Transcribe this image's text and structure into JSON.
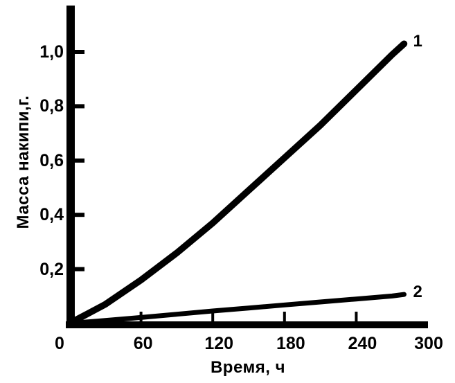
{
  "colors": {
    "ink": "#000000",
    "paper": "#ffffff"
  },
  "chart_data": {
    "type": "line",
    "title": "",
    "xlabel": "Время, ч",
    "ylabel": "Масса накипи,г.",
    "xlim": [
      0,
      300
    ],
    "ylim": [
      0,
      1.17
    ],
    "grid": false,
    "legend_position": "curve-end-labels",
    "x_ticks": [
      0,
      60,
      120,
      180,
      240,
      300
    ],
    "x_tick_labels": [
      "0",
      "60",
      "120",
      "180",
      "240",
      "300"
    ],
    "y_ticks": [
      0.2,
      0.4,
      0.6,
      0.8,
      1.0
    ],
    "y_tick_labels": [
      "0,2",
      "0,4",
      "0,6",
      "0,8",
      "1,0"
    ],
    "x": [
      0,
      30,
      60,
      90,
      120,
      150,
      180,
      210,
      240,
      270,
      280
    ],
    "series": [
      {
        "name": "1",
        "values": [
          0,
          0.07,
          0.16,
          0.26,
          0.37,
          0.49,
          0.61,
          0.73,
          0.86,
          0.99,
          1.03
        ]
      },
      {
        "name": "2",
        "values": [
          0,
          0.011,
          0.022,
          0.034,
          0.046,
          0.057,
          0.068,
          0.079,
          0.09,
          0.101,
          0.107
        ]
      }
    ]
  }
}
